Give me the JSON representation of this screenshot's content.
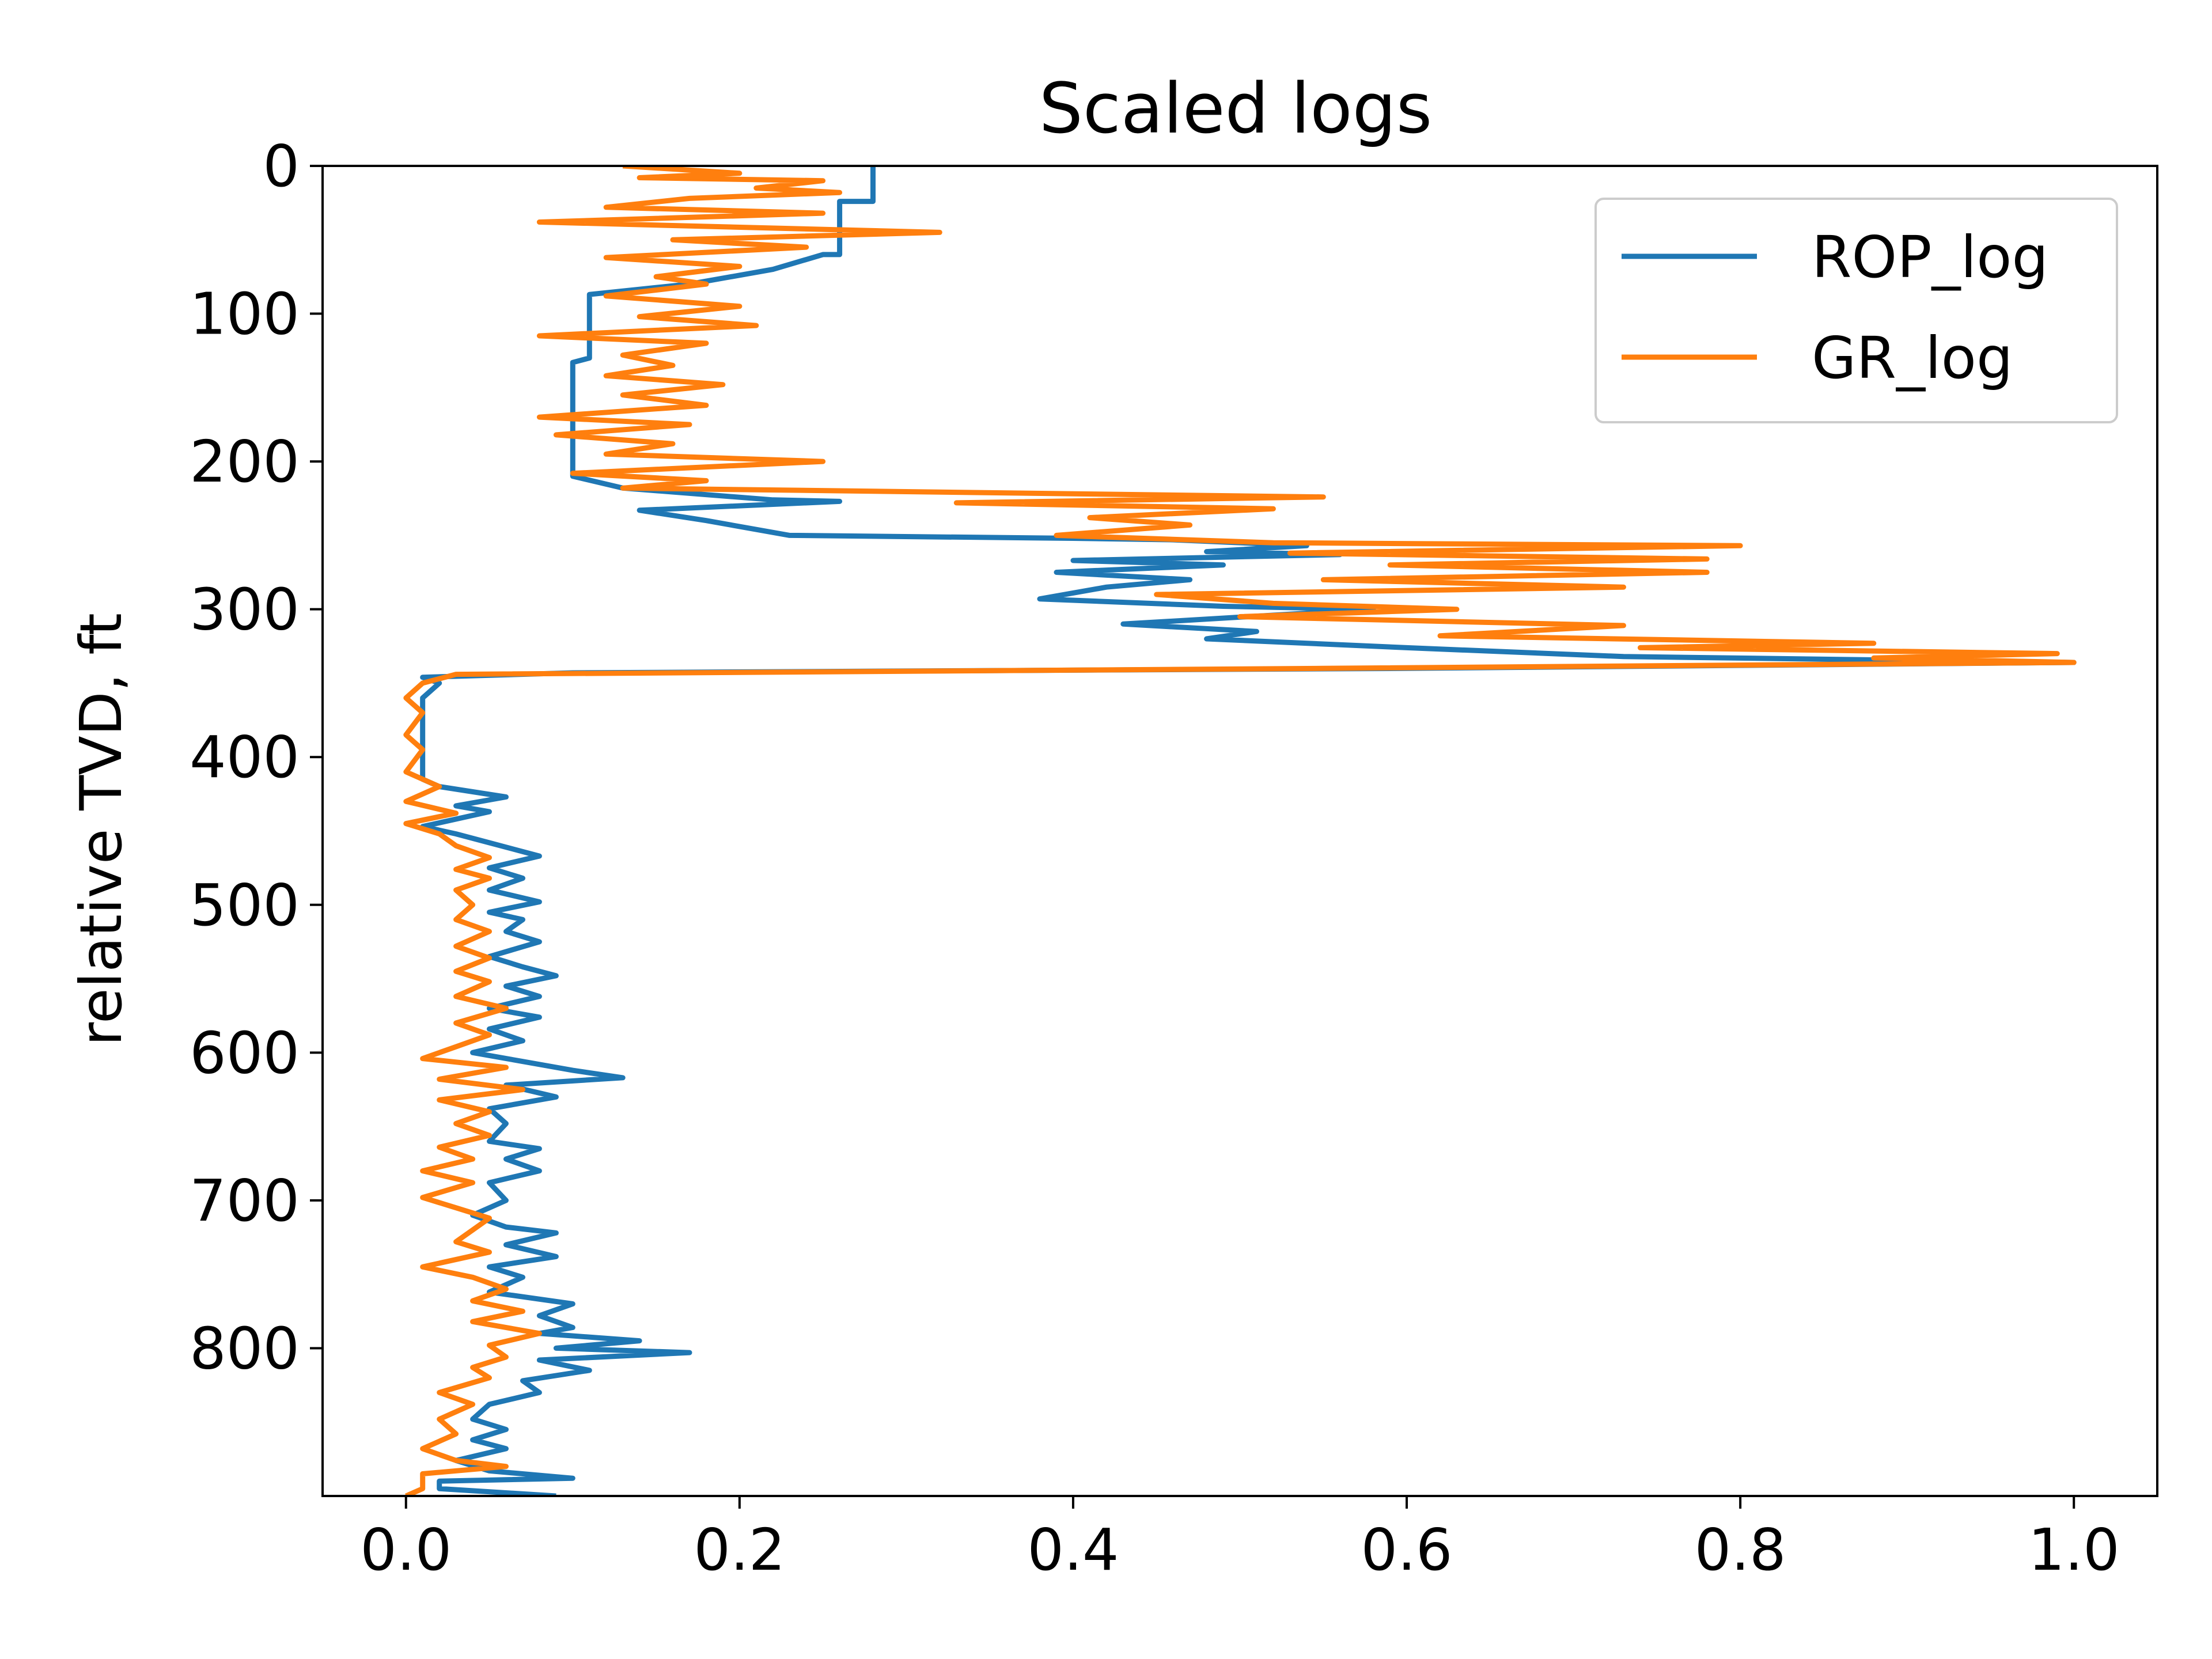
{
  "chart_data": {
    "type": "line",
    "title": "Scaled logs",
    "xlabel": "",
    "ylabel": "relative TVD, ft",
    "xlim": [
      -0.05,
      1.05
    ],
    "ylim": [
      900,
      0
    ],
    "y_inverted": true,
    "grid": false,
    "legend_position": "upper right",
    "xticks": [
      "0.0",
      "0.2",
      "0.4",
      "0.6",
      "0.8",
      "1.0"
    ],
    "yticks": [
      "0",
      "100",
      "200",
      "300",
      "400",
      "500",
      "600",
      "700",
      "800"
    ],
    "series": [
      {
        "name": "ROP_log",
        "color": "#1f77b4",
        "points": [
          [
            0.28,
            0
          ],
          [
            0.28,
            24
          ],
          [
            0.26,
            24
          ],
          [
            0.26,
            60
          ],
          [
            0.25,
            60
          ],
          [
            0.22,
            70
          ],
          [
            0.17,
            80
          ],
          [
            0.11,
            87
          ],
          [
            0.11,
            100
          ],
          [
            0.11,
            130
          ],
          [
            0.1,
            133
          ],
          [
            0.1,
            160
          ],
          [
            0.1,
            200
          ],
          [
            0.1,
            210
          ],
          [
            0.13,
            218
          ],
          [
            0.22,
            226
          ],
          [
            0.26,
            227
          ],
          [
            0.14,
            233
          ],
          [
            0.18,
            240
          ],
          [
            0.23,
            250
          ],
          [
            0.4,
            252
          ],
          [
            0.46,
            253
          ],
          [
            0.54,
            257
          ],
          [
            0.48,
            261
          ],
          [
            0.56,
            263
          ],
          [
            0.4,
            267
          ],
          [
            0.49,
            270
          ],
          [
            0.39,
            275
          ],
          [
            0.47,
            280
          ],
          [
            0.42,
            285
          ],
          [
            0.38,
            293
          ],
          [
            0.49,
            298
          ],
          [
            0.58,
            300
          ],
          [
            0.43,
            310
          ],
          [
            0.51,
            315
          ],
          [
            0.48,
            320
          ],
          [
            0.6,
            326
          ],
          [
            0.73,
            332
          ],
          [
            1.0,
            336
          ],
          [
            0.6,
            340
          ],
          [
            0.1,
            343
          ],
          [
            0.01,
            346
          ],
          [
            0.02,
            350
          ],
          [
            0.01,
            360
          ],
          [
            0.01,
            380
          ],
          [
            0.01,
            400
          ],
          [
            0.01,
            415
          ],
          [
            0.02,
            420
          ],
          [
            0.06,
            427
          ],
          [
            0.03,
            433
          ],
          [
            0.05,
            437
          ],
          [
            0.01,
            447
          ],
          [
            0.03,
            452
          ],
          [
            0.05,
            458
          ],
          [
            0.08,
            467
          ],
          [
            0.05,
            475
          ],
          [
            0.07,
            482
          ],
          [
            0.05,
            490
          ],
          [
            0.08,
            498
          ],
          [
            0.05,
            505
          ],
          [
            0.07,
            510
          ],
          [
            0.06,
            518
          ],
          [
            0.08,
            525
          ],
          [
            0.05,
            535
          ],
          [
            0.07,
            542
          ],
          [
            0.09,
            548
          ],
          [
            0.06,
            555
          ],
          [
            0.08,
            562
          ],
          [
            0.05,
            570
          ],
          [
            0.08,
            576
          ],
          [
            0.05,
            584
          ],
          [
            0.07,
            592
          ],
          [
            0.04,
            600
          ],
          [
            0.07,
            606
          ],
          [
            0.1,
            612
          ],
          [
            0.13,
            617
          ],
          [
            0.06,
            622
          ],
          [
            0.09,
            630
          ],
          [
            0.05,
            638
          ],
          [
            0.06,
            648
          ],
          [
            0.05,
            660
          ],
          [
            0.08,
            665
          ],
          [
            0.06,
            672
          ],
          [
            0.08,
            680
          ],
          [
            0.05,
            688
          ],
          [
            0.06,
            700
          ],
          [
            0.04,
            710
          ],
          [
            0.06,
            718
          ],
          [
            0.09,
            722
          ],
          [
            0.06,
            730
          ],
          [
            0.09,
            738
          ],
          [
            0.05,
            745
          ],
          [
            0.07,
            752
          ],
          [
            0.05,
            762
          ],
          [
            0.1,
            770
          ],
          [
            0.08,
            778
          ],
          [
            0.1,
            786
          ],
          [
            0.08,
            790
          ],
          [
            0.14,
            795
          ],
          [
            0.09,
            800
          ],
          [
            0.17,
            803
          ],
          [
            0.08,
            808
          ],
          [
            0.11,
            815
          ],
          [
            0.07,
            822
          ],
          [
            0.08,
            830
          ],
          [
            0.05,
            838
          ],
          [
            0.04,
            848
          ],
          [
            0.06,
            855
          ],
          [
            0.04,
            862
          ],
          [
            0.06,
            868
          ],
          [
            0.03,
            876
          ],
          [
            0.05,
            883
          ],
          [
            0.1,
            888
          ],
          [
            0.02,
            890
          ],
          [
            0.02,
            895
          ],
          [
            0.09,
            900
          ]
        ]
      },
      {
        "name": "GR_log",
        "color": "#ff7f0e",
        "points": [
          [
            0.13,
            0
          ],
          [
            0.2,
            5
          ],
          [
            0.14,
            8
          ],
          [
            0.25,
            10
          ],
          [
            0.21,
            15
          ],
          [
            0.26,
            18
          ],
          [
            0.17,
            22
          ],
          [
            0.12,
            28
          ],
          [
            0.25,
            32
          ],
          [
            0.08,
            38
          ],
          [
            0.32,
            45
          ],
          [
            0.16,
            50
          ],
          [
            0.24,
            55
          ],
          [
            0.12,
            62
          ],
          [
            0.2,
            68
          ],
          [
            0.15,
            75
          ],
          [
            0.18,
            80
          ],
          [
            0.12,
            88
          ],
          [
            0.2,
            95
          ],
          [
            0.14,
            102
          ],
          [
            0.21,
            108
          ],
          [
            0.08,
            115
          ],
          [
            0.18,
            120
          ],
          [
            0.13,
            128
          ],
          [
            0.16,
            135
          ],
          [
            0.12,
            142
          ],
          [
            0.19,
            148
          ],
          [
            0.13,
            155
          ],
          [
            0.18,
            162
          ],
          [
            0.08,
            170
          ],
          [
            0.17,
            175
          ],
          [
            0.09,
            182
          ],
          [
            0.16,
            188
          ],
          [
            0.12,
            195
          ],
          [
            0.25,
            200
          ],
          [
            0.1,
            208
          ],
          [
            0.18,
            213
          ],
          [
            0.13,
            218
          ],
          [
            0.55,
            224
          ],
          [
            0.33,
            228
          ],
          [
            0.52,
            232
          ],
          [
            0.41,
            238
          ],
          [
            0.47,
            243
          ],
          [
            0.39,
            250
          ],
          [
            0.52,
            255
          ],
          [
            0.8,
            257
          ],
          [
            0.53,
            262
          ],
          [
            0.78,
            266
          ],
          [
            0.59,
            270
          ],
          [
            0.78,
            275
          ],
          [
            0.55,
            280
          ],
          [
            0.73,
            285
          ],
          [
            0.45,
            290
          ],
          [
            0.52,
            296
          ],
          [
            0.63,
            300
          ],
          [
            0.5,
            305
          ],
          [
            0.73,
            311
          ],
          [
            0.62,
            318
          ],
          [
            0.88,
            323
          ],
          [
            0.74,
            326
          ],
          [
            0.99,
            330
          ],
          [
            0.88,
            333
          ],
          [
            1.0,
            336
          ],
          [
            0.55,
            340
          ],
          [
            0.03,
            344
          ],
          [
            0.01,
            350
          ],
          [
            0.0,
            360
          ],
          [
            0.01,
            370
          ],
          [
            0.0,
            385
          ],
          [
            0.01,
            395
          ],
          [
            0.0,
            410
          ],
          [
            0.02,
            420
          ],
          [
            0.0,
            430
          ],
          [
            0.03,
            438
          ],
          [
            0.0,
            445
          ],
          [
            0.02,
            452
          ],
          [
            0.03,
            460
          ],
          [
            0.05,
            468
          ],
          [
            0.03,
            476
          ],
          [
            0.05,
            482
          ],
          [
            0.03,
            490
          ],
          [
            0.04,
            500
          ],
          [
            0.03,
            510
          ],
          [
            0.05,
            518
          ],
          [
            0.03,
            528
          ],
          [
            0.05,
            536
          ],
          [
            0.03,
            545
          ],
          [
            0.05,
            552
          ],
          [
            0.03,
            562
          ],
          [
            0.06,
            570
          ],
          [
            0.03,
            580
          ],
          [
            0.05,
            588
          ],
          [
            0.03,
            596
          ],
          [
            0.01,
            604
          ],
          [
            0.06,
            610
          ],
          [
            0.02,
            618
          ],
          [
            0.07,
            625
          ],
          [
            0.02,
            632
          ],
          [
            0.05,
            640
          ],
          [
            0.03,
            648
          ],
          [
            0.05,
            656
          ],
          [
            0.02,
            664
          ],
          [
            0.04,
            672
          ],
          [
            0.01,
            680
          ],
          [
            0.04,
            688
          ],
          [
            0.01,
            698
          ],
          [
            0.03,
            705
          ],
          [
            0.05,
            712
          ],
          [
            0.04,
            720
          ],
          [
            0.03,
            728
          ],
          [
            0.05,
            735
          ],
          [
            0.01,
            745
          ],
          [
            0.04,
            752
          ],
          [
            0.06,
            760
          ],
          [
            0.04,
            768
          ],
          [
            0.07,
            775
          ],
          [
            0.04,
            782
          ],
          [
            0.08,
            790
          ],
          [
            0.05,
            798
          ],
          [
            0.06,
            806
          ],
          [
            0.04,
            813
          ],
          [
            0.05,
            820
          ],
          [
            0.02,
            830
          ],
          [
            0.04,
            838
          ],
          [
            0.02,
            848
          ],
          [
            0.03,
            858
          ],
          [
            0.01,
            868
          ],
          [
            0.03,
            876
          ],
          [
            0.06,
            880
          ],
          [
            0.01,
            885
          ],
          [
            0.01,
            895
          ],
          [
            0.0,
            900
          ]
        ]
      }
    ]
  }
}
